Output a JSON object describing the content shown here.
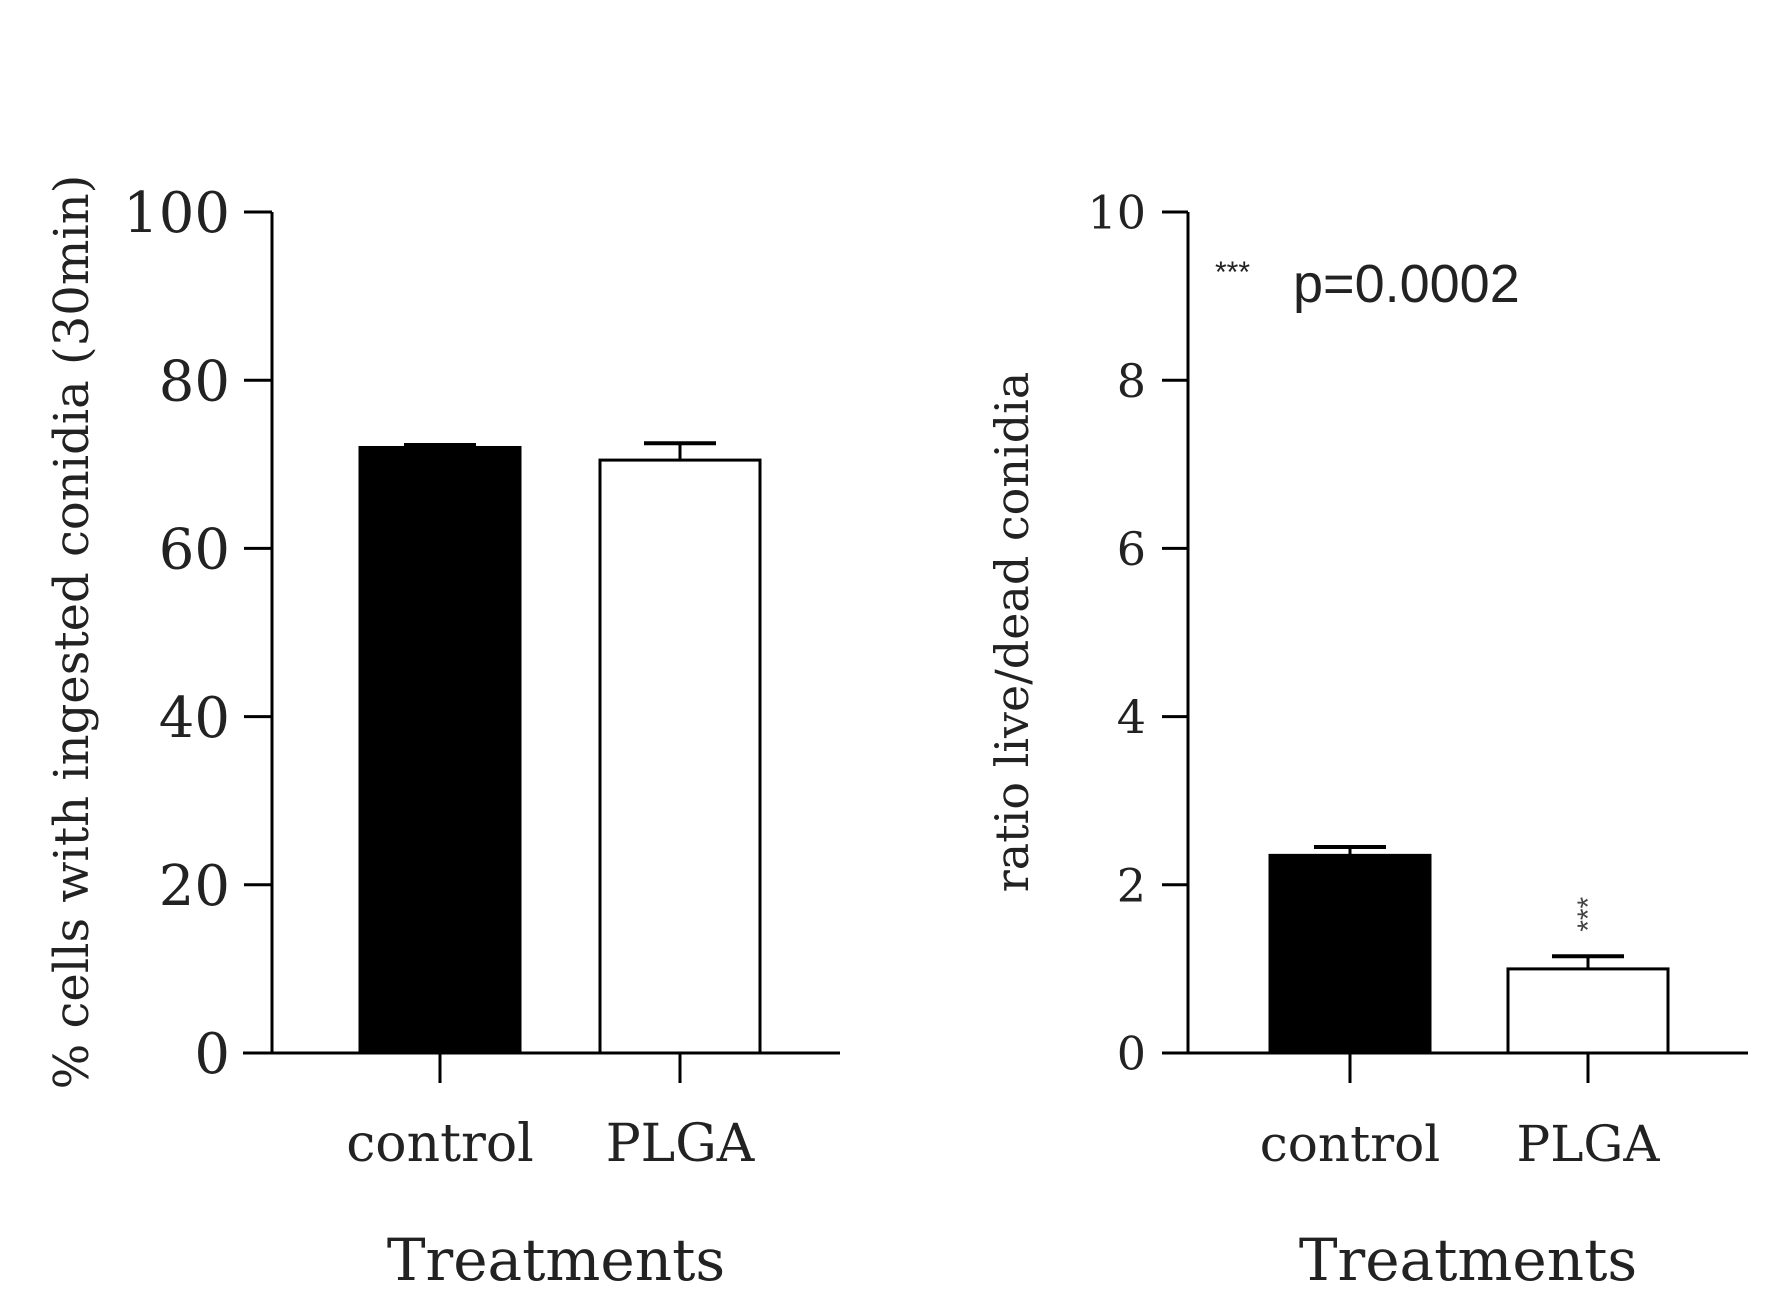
{
  "chart_data": [
    {
      "type": "bar",
      "title": "",
      "xlabel": "Treatments",
      "ylabel": "% cells with ingested conidia (30min)",
      "ylim": [
        0,
        100
      ],
      "yticks": [
        "0",
        "20",
        "40",
        "60",
        "80",
        "100"
      ],
      "categories": [
        "control",
        "PLGA"
      ],
      "values": [
        72,
        70.5
      ],
      "errors": [
        0.3,
        2.0
      ],
      "fill_colors": [
        "#000000",
        "#ffffff"
      ],
      "annotations": []
    },
    {
      "type": "bar",
      "title": "",
      "xlabel": "Treatments",
      "ylabel": "ratio live/dead conidia",
      "ylim": [
        0,
        10
      ],
      "yticks": [
        "0",
        "2",
        "4",
        "6",
        "8",
        "10"
      ],
      "categories": [
        "control",
        "PLGA"
      ],
      "values": [
        2.35,
        1.0
      ],
      "errors": [
        0.1,
        0.15
      ],
      "fill_colors": [
        "#000000",
        "#ffffff"
      ],
      "significance": [
        "",
        "***"
      ],
      "annotations": [
        {
          "stars": "***",
          "text": "p=0.0002"
        }
      ]
    }
  ]
}
